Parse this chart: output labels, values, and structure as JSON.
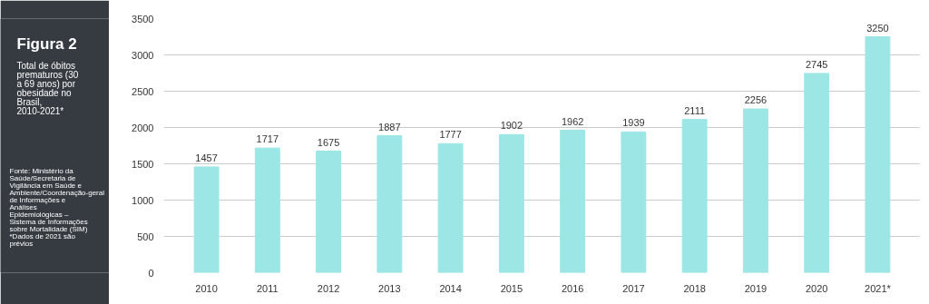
{
  "chart_data": {
    "type": "bar",
    "title": "Figura 2",
    "subtitle": "Total de óbitos prematuros (30 a 69 anos) por obesidade no Brasil, 2010-2021*",
    "annotations": [
      "Fonte: Ministério da Saúde/Secretaria de Vigilância em Saúde e Ambiente/Coordenação-geral de Informações e Análises Epidemiológicas – Sistema de Informações sobre Mortalidade (SIM)",
      "*Dados de 2021 são prévios"
    ],
    "categories": [
      "2010",
      "2011",
      "2012",
      "2013",
      "2014",
      "2015",
      "2016",
      "2017",
      "2018",
      "2019",
      "2020",
      "2021*"
    ],
    "values": [
      1457,
      1717,
      1675,
      1887,
      1777,
      1902,
      1962,
      1939,
      2111,
      2256,
      2745,
      3250
    ],
    "color": "#9ce6e6",
    "ylim": [
      0,
      3500
    ],
    "yticks": [
      0,
      500,
      1000,
      1500,
      2000,
      2500,
      3000,
      3500
    ],
    "grid": "y",
    "data_labels": true
  }
}
